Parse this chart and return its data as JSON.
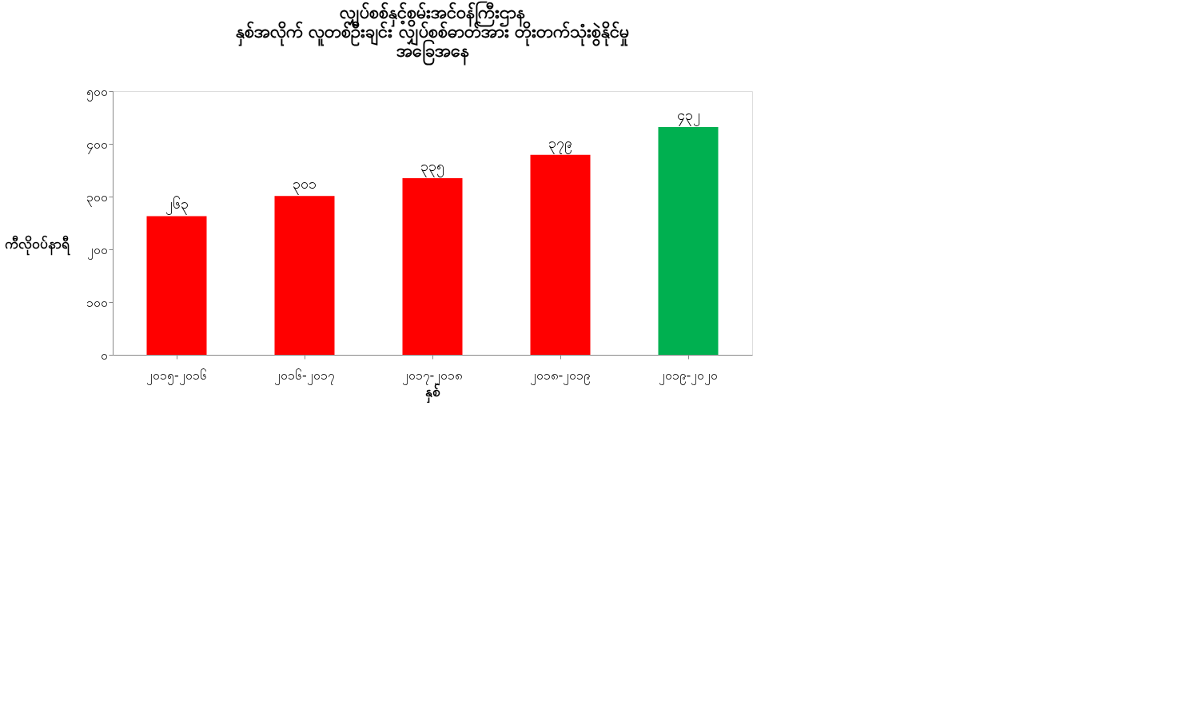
{
  "chart_data": {
    "type": "bar",
    "title": [
      "လျှပ်စစ်နှင့်စွမ်းအင်ဝန်ကြီးဌာန",
      "နှစ်အလိုက် လူတစ်ဦးချင်း လျှပ်စစ်ဓာတ်အား တိုးတက်သုံးစွဲနိုင်မှု",
      "အခြေအနေ"
    ],
    "xlabel": "နှစ်",
    "ylabel": "ကီလိုဝပ်နာရီ",
    "categories": [
      "၂၀၁၅-၂၀၁၆",
      "၂၀၁၆-၂၀၁၇",
      "၂၀၁၇-၂၀၁၈",
      "၂၀၁၈-၂၀၁၉",
      "၂၀၁၉-၂၀၂၀"
    ],
    "values": [
      263,
      301,
      335,
      379,
      432
    ],
    "value_labels": [
      "၂၆၃",
      "၃၀၁",
      "၃၃၅",
      "၃၇၉",
      "၄၃၂"
    ],
    "colors": [
      "#ff0000",
      "#ff0000",
      "#ff0000",
      "#ff0000",
      "#00b050"
    ],
    "ylim": [
      0,
      500
    ],
    "yticks": [
      {
        "value": 0,
        "label": "၀"
      },
      {
        "value": 100,
        "label": "၁၀၀"
      },
      {
        "value": 200,
        "label": "၂၀၀"
      },
      {
        "value": 300,
        "label": "၃၀၀"
      },
      {
        "value": 400,
        "label": "၄၀၀"
      },
      {
        "value": 500,
        "label": "၅၀၀"
      }
    ],
    "grid": false
  }
}
